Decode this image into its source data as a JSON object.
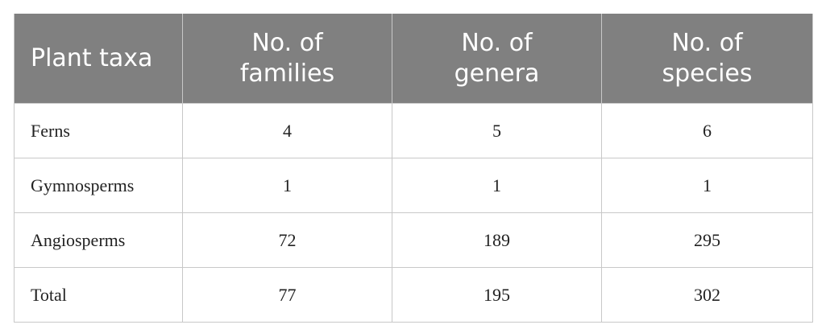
{
  "table": {
    "headers": [
      "Plant taxa",
      "No. of families",
      "No. of genera",
      "No. of species"
    ],
    "rows": [
      [
        "Ferns",
        4,
        5,
        6
      ],
      [
        "Gymnosperms",
        1,
        1,
        1
      ],
      [
        "Angiosperms",
        72,
        189,
        295
      ],
      [
        "Total",
        77,
        195,
        302
      ]
    ]
  }
}
